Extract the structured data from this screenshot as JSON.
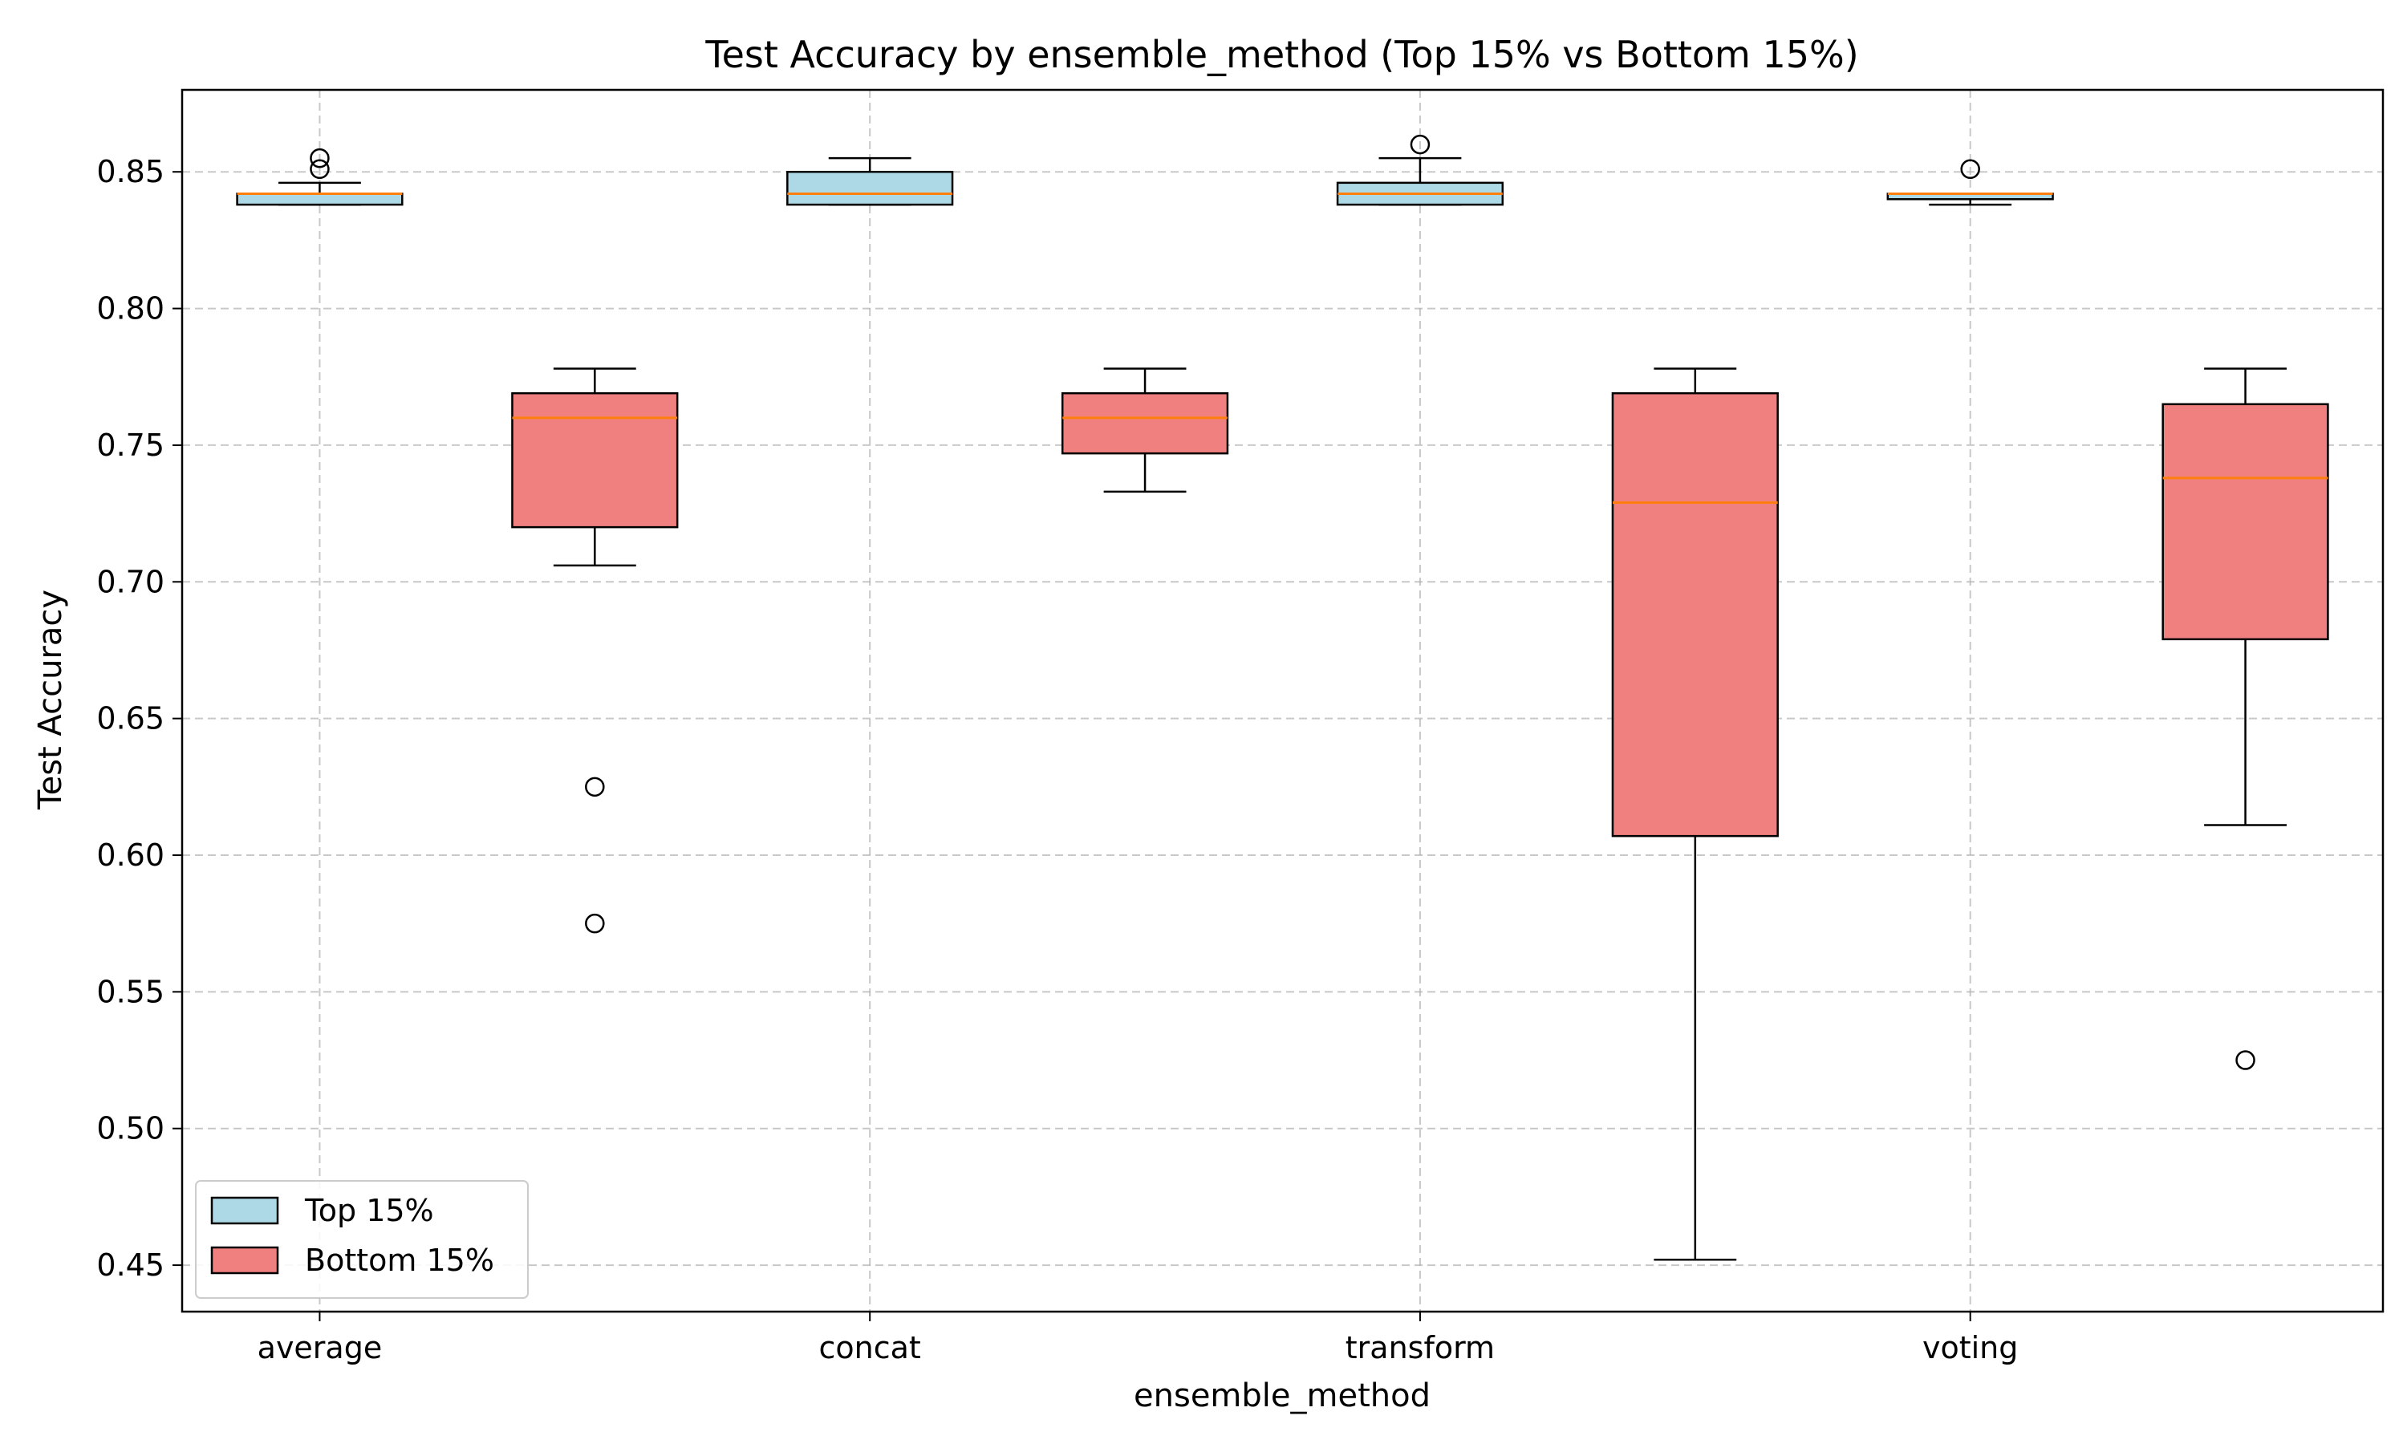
{
  "chart_data": {
    "type": "box",
    "title": "Test Accuracy by ensemble_method (Top 15% vs Bottom 15%)",
    "xlabel": "ensemble_method",
    "ylabel": "Test Accuracy",
    "categories": [
      "average",
      "concat",
      "transform",
      "voting"
    ],
    "ylim": [
      0.433,
      0.88
    ],
    "yticks": [
      0.45,
      0.5,
      0.55,
      0.6,
      0.65,
      0.7,
      0.75,
      0.8,
      0.85
    ],
    "ytick_labels": [
      "0.45",
      "0.50",
      "0.55",
      "0.60",
      "0.65",
      "0.70",
      "0.75",
      "0.80",
      "0.85"
    ],
    "grid": true,
    "legend_position": "lower-left",
    "series": [
      {
        "name": "Top 15%",
        "color": "#add8e6",
        "boxes": [
          {
            "category": "average",
            "whisker_low": 0.838,
            "q1": 0.838,
            "median": 0.842,
            "q3": 0.842,
            "whisker_high": 0.846,
            "outliers": [
              0.851,
              0.855
            ]
          },
          {
            "category": "concat",
            "whisker_low": 0.838,
            "q1": 0.838,
            "median": 0.842,
            "q3": 0.85,
            "whisker_high": 0.855,
            "outliers": []
          },
          {
            "category": "transform",
            "whisker_low": 0.838,
            "q1": 0.838,
            "median": 0.842,
            "q3": 0.846,
            "whisker_high": 0.855,
            "outliers": [
              0.86
            ]
          },
          {
            "category": "voting",
            "whisker_low": 0.838,
            "q1": 0.84,
            "median": 0.842,
            "q3": 0.842,
            "whisker_high": 0.842,
            "outliers": [
              0.851
            ]
          }
        ]
      },
      {
        "name": "Bottom 15%",
        "color": "#f08080",
        "boxes": [
          {
            "category": "average",
            "whisker_low": 0.706,
            "q1": 0.72,
            "median": 0.76,
            "q3": 0.769,
            "whisker_high": 0.778,
            "outliers": [
              0.625,
              0.575
            ]
          },
          {
            "category": "concat",
            "whisker_low": 0.733,
            "q1": 0.747,
            "median": 0.76,
            "q3": 0.769,
            "whisker_high": 0.778,
            "outliers": []
          },
          {
            "category": "transform",
            "whisker_low": 0.452,
            "q1": 0.607,
            "median": 0.729,
            "q3": 0.769,
            "whisker_high": 0.778,
            "outliers": []
          },
          {
            "category": "voting",
            "whisker_low": 0.611,
            "q1": 0.679,
            "median": 0.738,
            "q3": 0.765,
            "whisker_high": 0.778,
            "outliers": [
              0.525
            ]
          }
        ]
      }
    ],
    "median_color": "#ff7f0e"
  }
}
